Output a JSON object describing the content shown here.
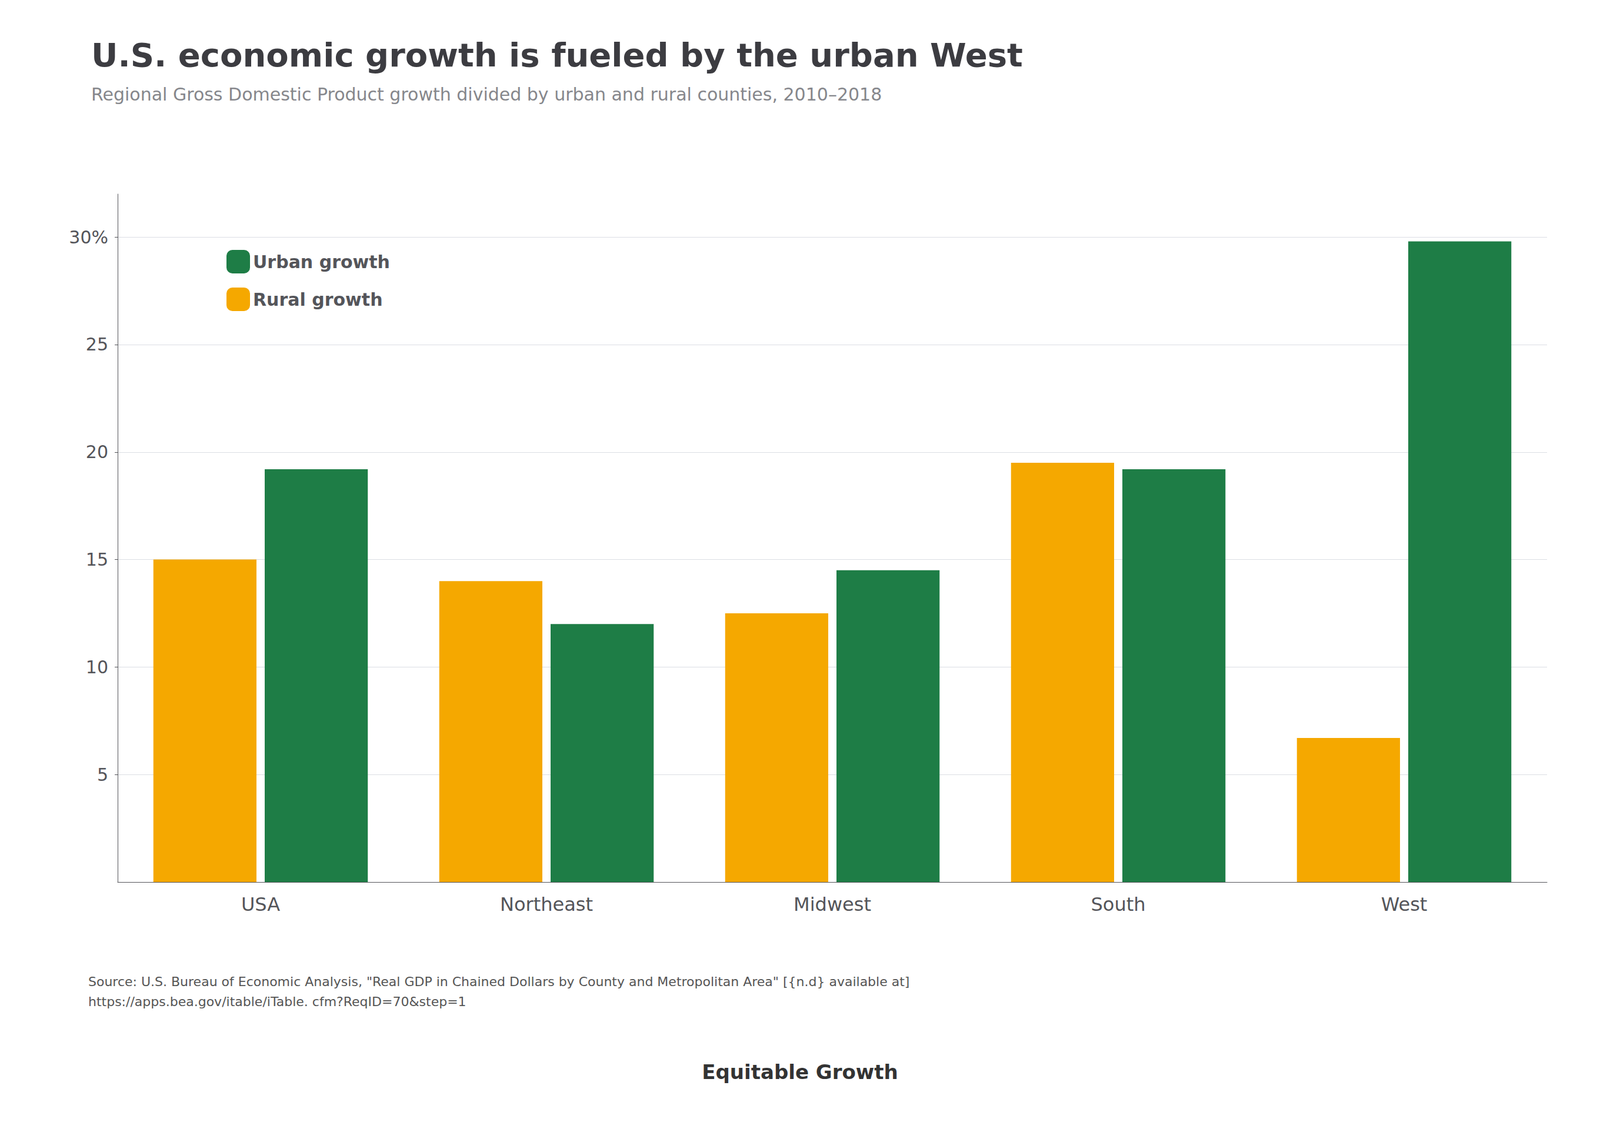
{
  "chart_data": {
    "type": "bar",
    "title": "U.S. economic growth is fueled by the urban West",
    "subtitle": "Regional Gross Domestic Product growth divided by urban and rural counties, 2010–2018",
    "categories": [
      "USA",
      "Northeast",
      "Midwest",
      "South",
      "West"
    ],
    "series": [
      {
        "name": "Rural growth",
        "color": "#F5A800",
        "values": [
          15.0,
          14.0,
          12.5,
          19.5,
          6.7
        ]
      },
      {
        "name": "Urban growth",
        "color": "#1E7D46",
        "values": [
          19.2,
          12.0,
          14.5,
          19.2,
          29.8
        ]
      }
    ],
    "ylim": [
      0,
      32
    ],
    "yticks": [
      5,
      10,
      15,
      20,
      25,
      {
        "value": 30,
        "label": "30%"
      }
    ],
    "grid": true,
    "legend": "upper left",
    "annotations": [
      "Source: U.S. Bureau of Economic Analysis, \"Real GDP in Chained Dollars by County and Metropolitan Area\" [{n.d} available at]\nhttps://apps.bea.gov/itable/iTable. cfm?ReqID=70&step=1",
      "Equitable Growth"
    ]
  }
}
